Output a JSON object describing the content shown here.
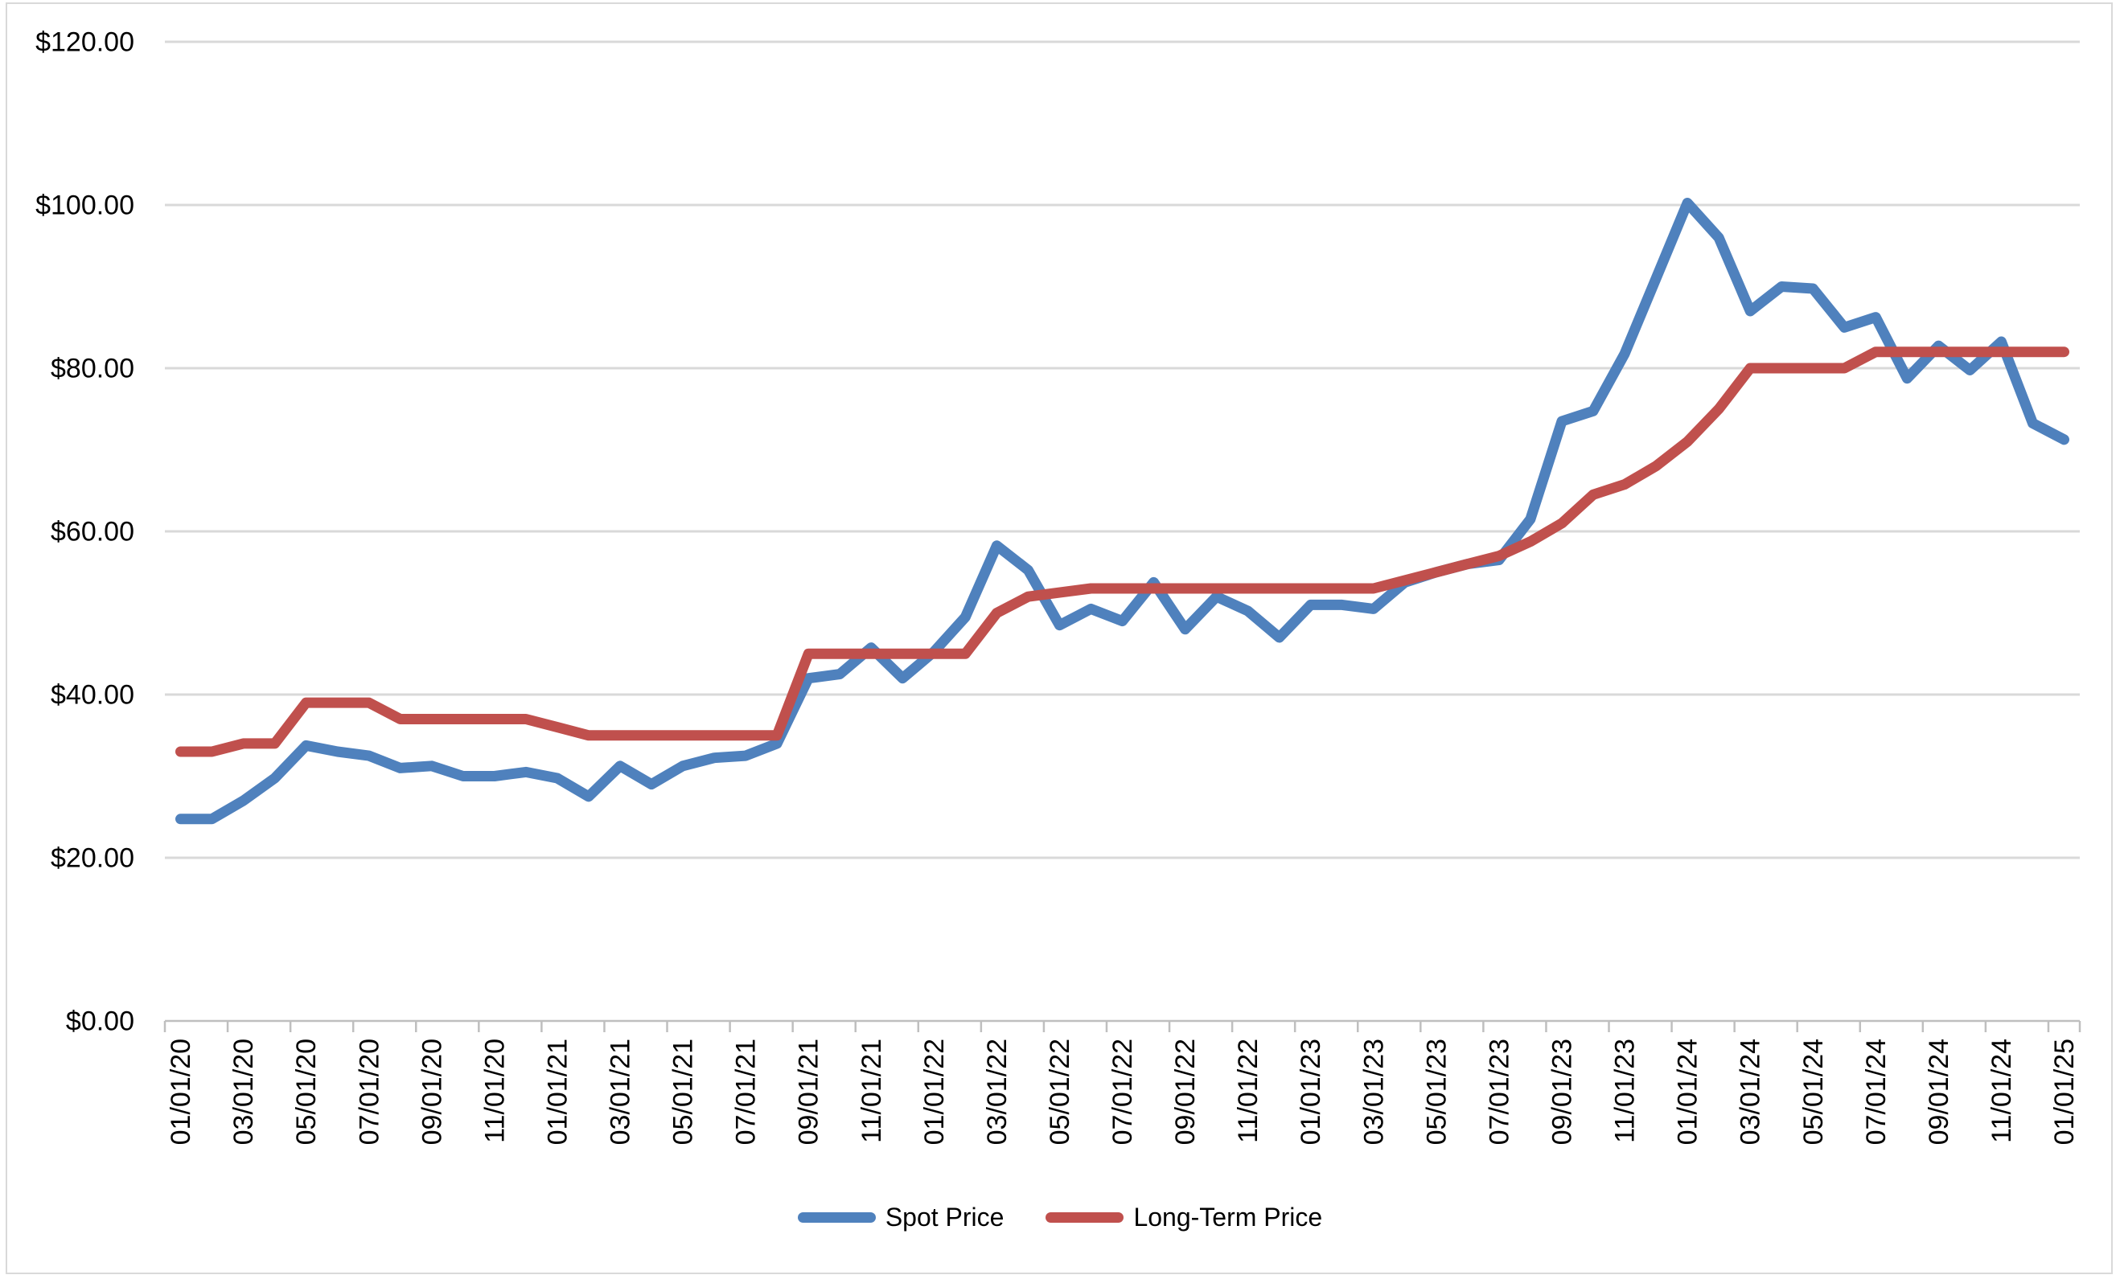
{
  "chart_data": {
    "type": "line",
    "title": "",
    "xlabel": "",
    "ylabel": "",
    "ylim": [
      0,
      120
    ],
    "ytick_step": 20,
    "ytick_labels": [
      "$0.00",
      "$20.00",
      "$40.00",
      "$60.00",
      "$80.00",
      "$100.00",
      "$120.00"
    ],
    "x_tick_labels_every": 2,
    "grid": "horizontal",
    "legend_position": "bottom",
    "categories": [
      "01/01/20",
      "02/01/20",
      "03/01/20",
      "04/01/20",
      "05/01/20",
      "06/01/20",
      "07/01/20",
      "08/01/20",
      "09/01/20",
      "10/01/20",
      "11/01/20",
      "12/01/20",
      "01/01/21",
      "02/01/21",
      "03/01/21",
      "04/01/21",
      "05/01/21",
      "06/01/21",
      "07/01/21",
      "08/01/21",
      "09/01/21",
      "10/01/21",
      "11/01/21",
      "12/01/21",
      "01/01/22",
      "02/01/22",
      "03/01/22",
      "04/01/22",
      "05/01/22",
      "06/01/22",
      "07/01/22",
      "08/01/22",
      "09/01/22",
      "10/01/22",
      "11/01/22",
      "12/01/22",
      "01/01/23",
      "02/01/23",
      "03/01/23",
      "04/01/23",
      "05/01/23",
      "06/01/23",
      "07/01/23",
      "08/01/23",
      "09/01/23",
      "10/01/23",
      "11/01/23",
      "12/01/23",
      "01/01/24",
      "02/01/24",
      "03/01/24",
      "04/01/24",
      "05/01/24",
      "06/01/24",
      "07/01/24",
      "08/01/24",
      "09/01/24",
      "10/01/24",
      "11/01/24",
      "12/01/24",
      "01/01/25"
    ],
    "series": [
      {
        "name": "Spot Price",
        "color": "#4F81BD",
        "values": [
          24.75,
          24.75,
          27,
          29.75,
          33.75,
          33,
          32.5,
          31,
          31.25,
          30,
          30,
          30.5,
          29.75,
          27.5,
          31.25,
          29,
          31.25,
          32.25,
          32.5,
          34,
          42,
          42.5,
          45.75,
          42,
          45.25,
          49.5,
          58.25,
          55.25,
          48.5,
          50.5,
          49,
          53.75,
          48,
          52,
          50.25,
          47,
          51,
          51,
          50.5,
          53.75,
          55,
          56,
          56.5,
          61.5,
          73.5,
          74.75,
          81.75,
          91,
          100.25,
          96,
          87,
          90,
          89.75,
          85,
          86.25,
          78.75,
          82.75,
          79.75,
          83.25,
          73.25,
          71.25
        ]
      },
      {
        "name": "Long-Term Price",
        "color": "#C0504D",
        "values": [
          33,
          33,
          34,
          34,
          39,
          39,
          39,
          37,
          37,
          37,
          37,
          37,
          36,
          35,
          35,
          35,
          35,
          35,
          35,
          35,
          45,
          45,
          45,
          45,
          45,
          45,
          50,
          52,
          52.5,
          53,
          53,
          53,
          53,
          53,
          53,
          53,
          53,
          53,
          53,
          54,
          55,
          56,
          57,
          58.75,
          61,
          64.5,
          65.75,
          68,
          71,
          75,
          80,
          80,
          80,
          80,
          82,
          82,
          82,
          82,
          82,
          82,
          82
        ]
      }
    ]
  },
  "colors": {
    "grid": "#D9D9D9",
    "axis": "#BFBFBF",
    "text": "#000000",
    "background": "#FFFFFF",
    "border": "#D9D9D9"
  }
}
